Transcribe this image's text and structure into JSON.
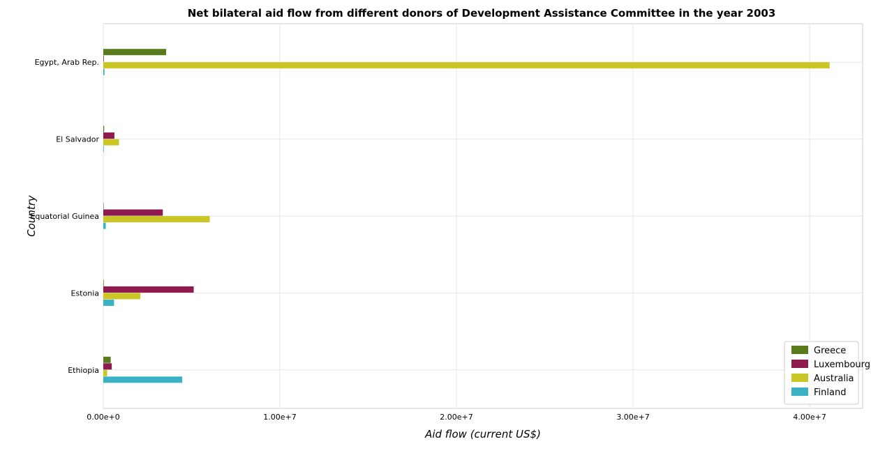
{
  "chart_data": {
    "type": "bar",
    "orientation": "horizontal",
    "title": "Net bilateral aid flow from different donors of Development Assistance Committee in the year 2003",
    "xlabel": "Aid flow (current US$)",
    "ylabel": "Country",
    "xlim": [
      0,
      43000000
    ],
    "xticks": [
      0,
      10000000,
      20000000,
      30000000,
      40000000
    ],
    "xtick_labels": [
      "0.00e+0",
      "1.00e+7",
      "2.00e+7",
      "3.00e+7",
      "4.00e+7"
    ],
    "grid": true,
    "legend_position": "bottom-right",
    "categories": [
      "Egypt, Arab Rep.",
      "El Salvador",
      "Equatorial Guinea",
      "Estonia",
      "Ethiopia"
    ],
    "series": [
      {
        "name": "Greece",
        "color": "#5a7a1e",
        "values": [
          3560000,
          50000,
          20000,
          30000,
          420000
        ]
      },
      {
        "name": "Luxembourg",
        "color": "#8e1a4e",
        "values": [
          30000,
          630000,
          3370000,
          5120000,
          480000
        ]
      },
      {
        "name": "Australia",
        "color": "#c9c626",
        "values": [
          41130000,
          890000,
          6030000,
          2100000,
          220000
        ]
      },
      {
        "name": "Finland",
        "color": "#3bb2c4",
        "values": [
          70000,
          30000,
          140000,
          610000,
          4470000
        ]
      }
    ]
  }
}
